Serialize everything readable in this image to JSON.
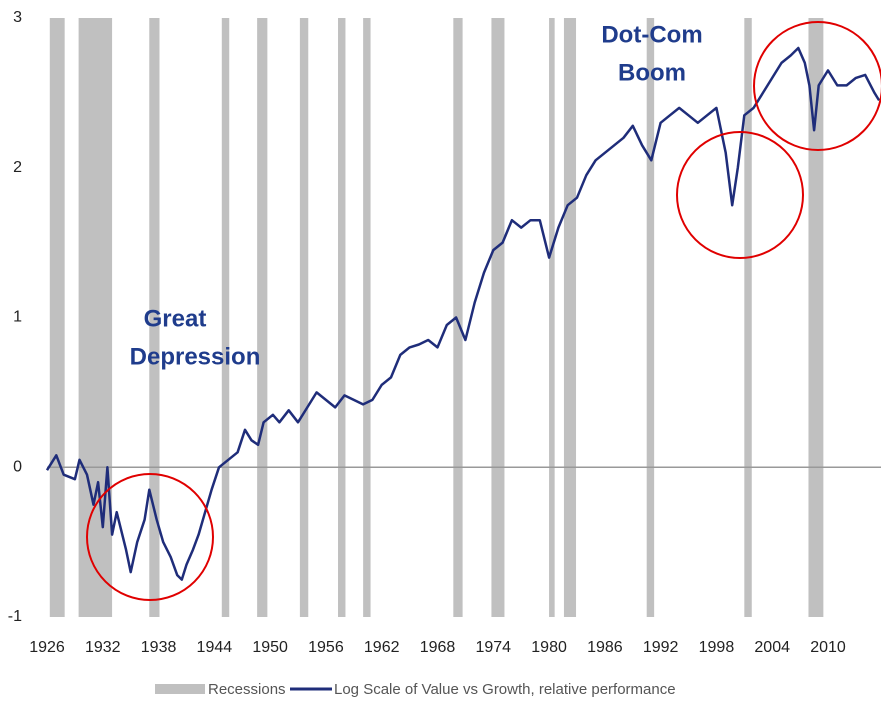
{
  "chart_data": {
    "type": "line",
    "xlim": [
      1926,
      2015.7
    ],
    "ylim": [
      -1,
      3
    ],
    "yticks": [
      -1,
      0,
      1,
      2,
      3
    ],
    "xticks": [
      1926,
      1932,
      1938,
      1944,
      1950,
      1956,
      1962,
      1968,
      1974,
      1980,
      1986,
      1992,
      1998,
      2004,
      2010
    ],
    "reference_line": 0,
    "recessions": {
      "name": "Recessions",
      "color": "#c0c0c0",
      "ranges": [
        [
          1926.3,
          1927.9
        ],
        [
          1929.4,
          1933.0
        ],
        [
          1937.0,
          1938.1
        ],
        [
          1944.8,
          1945.6
        ],
        [
          1948.6,
          1949.7
        ],
        [
          1953.2,
          1954.1
        ],
        [
          1957.3,
          1958.1
        ],
        [
          1960.0,
          1960.8
        ],
        [
          1969.7,
          1970.7
        ],
        [
          1973.8,
          1975.2
        ],
        [
          1980.0,
          1980.6
        ],
        [
          1981.6,
          1982.9
        ],
        [
          1990.5,
          1991.3
        ],
        [
          2001.0,
          2001.8
        ],
        [
          2007.9,
          2009.5
        ]
      ]
    },
    "series": [
      {
        "name": "Log Scale of Value vs Growth, relative performance",
        "color": "#1f2d7a",
        "x": [
          1926.0,
          1927.0,
          1927.8,
          1929.0,
          1929.5,
          1930.3,
          1931.0,
          1931.5,
          1932.0,
          1932.5,
          1933.0,
          1933.5,
          1934.5,
          1935.0,
          1935.7,
          1936.5,
          1937.0,
          1937.8,
          1938.5,
          1939.3,
          1940.0,
          1940.5,
          1941.0,
          1941.7,
          1942.3,
          1943.0,
          1943.7,
          1944.5,
          1945.5,
          1946.5,
          1947.3,
          1948.0,
          1948.7,
          1949.3,
          1950.3,
          1951.0,
          1952.0,
          1953.0,
          1954.0,
          1955.0,
          1956.0,
          1957.0,
          1958.0,
          1959.0,
          1960.0,
          1961.0,
          1962.0,
          1963.0,
          1964.0,
          1965.0,
          1966.0,
          1967.0,
          1968.0,
          1969.0,
          1970.0,
          1971.0,
          1972.0,
          1973.0,
          1974.0,
          1975.0,
          1976.0,
          1977.0,
          1978.0,
          1979.0,
          1980.0,
          1981.0,
          1982.0,
          1983.0,
          1984.0,
          1985.0,
          1986.0,
          1987.0,
          1988.0,
          1989.0,
          1990.0,
          1991.0,
          1992.0,
          1993.0,
          1994.0,
          1995.0,
          1996.0,
          1997.0,
          1998.0,
          1999.0,
          1999.7,
          2000.3,
          2001.0,
          2002.0,
          2003.0,
          2004.0,
          2005.0,
          2006.0,
          2006.8,
          2007.5,
          2008.0,
          2008.5,
          2009.0,
          2010.0,
          2011.0,
          2012.0,
          2013.0,
          2014.0,
          2015.0,
          2015.5
        ],
        "values": [
          -0.02,
          0.08,
          -0.05,
          -0.08,
          0.05,
          -0.05,
          -0.25,
          -0.1,
          -0.4,
          0.0,
          -0.45,
          -0.3,
          -0.55,
          -0.7,
          -0.5,
          -0.35,
          -0.15,
          -0.35,
          -0.5,
          -0.6,
          -0.72,
          -0.75,
          -0.65,
          -0.55,
          -0.45,
          -0.3,
          -0.15,
          0.0,
          0.05,
          0.1,
          0.25,
          0.18,
          0.15,
          0.3,
          0.35,
          0.3,
          0.38,
          0.3,
          0.4,
          0.5,
          0.45,
          0.4,
          0.48,
          0.45,
          0.42,
          0.45,
          0.55,
          0.6,
          0.75,
          0.8,
          0.82,
          0.85,
          0.8,
          0.95,
          1.0,
          0.85,
          1.1,
          1.3,
          1.45,
          1.5,
          1.65,
          1.6,
          1.65,
          1.65,
          1.4,
          1.6,
          1.75,
          1.8,
          1.95,
          2.05,
          2.1,
          2.15,
          2.2,
          2.28,
          2.15,
          2.05,
          2.3,
          2.35,
          2.4,
          2.35,
          2.3,
          2.35,
          2.4,
          2.1,
          1.75,
          2.0,
          2.35,
          2.4,
          2.5,
          2.6,
          2.7,
          2.75,
          2.8,
          2.7,
          2.55,
          2.25,
          2.55,
          2.65,
          2.55,
          2.55,
          2.6,
          2.62,
          2.5,
          2.45
        ]
      }
    ],
    "annotations": [
      {
        "lines": [
          "Great",
          "Depression"
        ]
      },
      {
        "lines": [
          "Dot-Com",
          "Boom"
        ]
      }
    ]
  }
}
